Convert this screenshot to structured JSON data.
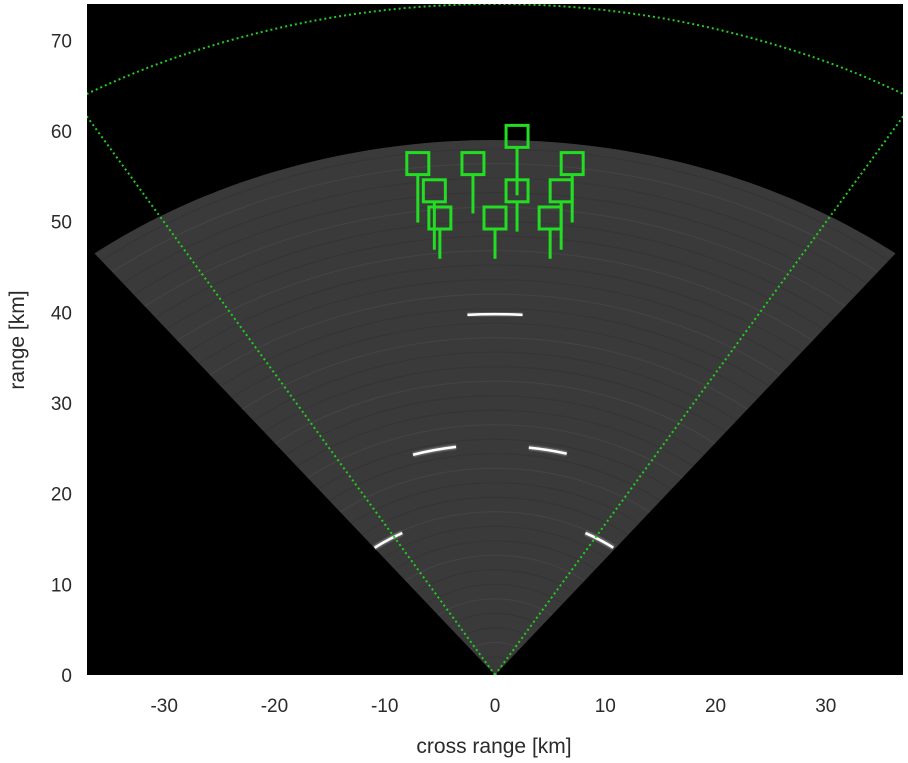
{
  "chart_data": {
    "type": "scatter",
    "title": "",
    "xlabel": "cross range [km]",
    "ylabel": "range [km]",
    "xlim": [
      -37,
      37
    ],
    "ylim": [
      0,
      74
    ],
    "xticks": [
      -30,
      -20,
      -10,
      0,
      10,
      20,
      30
    ],
    "yticks": [
      0,
      10,
      20,
      30,
      40,
      50,
      60,
      70
    ],
    "grid": false,
    "legend": "none",
    "background_color": "#000000",
    "sensor_origin": [
      0,
      0
    ],
    "field_of_view": {
      "half_angle_deg": 31,
      "max_range": 74,
      "line_style": "dotted",
      "color": "#22cc22"
    },
    "radar_coverage": {
      "half_angle_deg": 38,
      "max_range": 59,
      "color": "#3a3a3a"
    },
    "detections": [
      {
        "x": 0,
        "y": 39.8,
        "width": 5
      },
      {
        "x": -5.5,
        "y": 24.8,
        "width": 4
      },
      {
        "x": 4.8,
        "y": 24.8,
        "width": 3.5
      },
      {
        "x": -9.7,
        "y": 14.9,
        "width": 3
      },
      {
        "x": 9.5,
        "y": 14.9,
        "width": 3
      }
    ],
    "tracks": [
      {
        "x": 2,
        "y": 59.4,
        "tail": 6.5
      },
      {
        "x": -7,
        "y": 56.4,
        "tail": 6.5
      },
      {
        "x": -2,
        "y": 56.4,
        "tail": 5.5
      },
      {
        "x": 7,
        "y": 56.4,
        "tail": 6.5
      },
      {
        "x": -5.5,
        "y": 53.4,
        "tail": 6.5
      },
      {
        "x": 2,
        "y": 53.4,
        "tail": 4.5
      },
      {
        "x": 6,
        "y": 53.4,
        "tail": 6.5
      },
      {
        "x": -5,
        "y": 50.4,
        "tail": 4.5
      },
      {
        "x": 0,
        "y": 50.4,
        "tail": 4.5
      },
      {
        "x": 5,
        "y": 50.4,
        "tail": 4.5
      }
    ],
    "track_color": "#22dd22",
    "detection_color": "#ffffff"
  }
}
